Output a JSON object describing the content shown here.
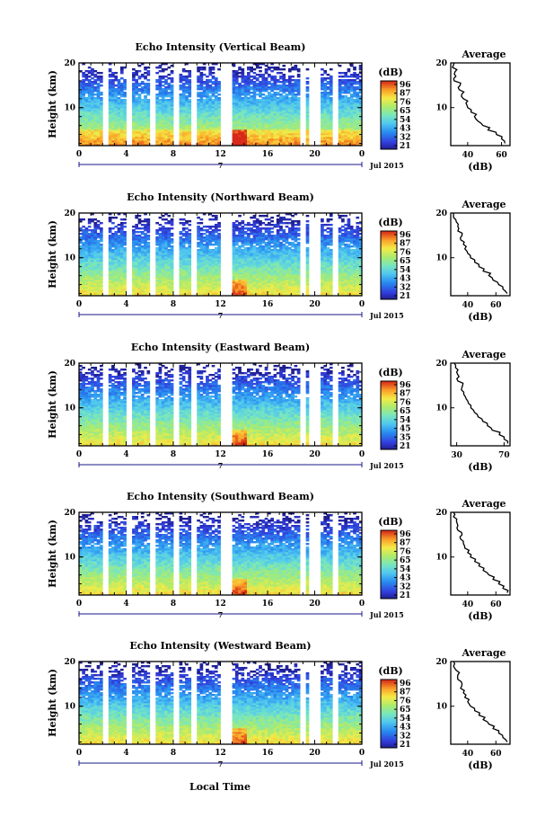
{
  "figure": {
    "bottom_xlabel": "Local Time"
  },
  "chart_data": [
    {
      "type": "heatmap",
      "title": "Echo Intensity (Vertical Beam)",
      "ylabel": "Height (km)",
      "xlim": [
        0,
        24
      ],
      "ylim": [
        1.5,
        20
      ],
      "x_ticks": [
        "0",
        "4",
        "8",
        "12",
        "16",
        "20",
        "0"
      ],
      "y_ticks": [
        "20",
        "10"
      ],
      "date_label": "Jul 2015",
      "date_marker": "7",
      "colorbar": {
        "label": "(dB)",
        "ticks": [
          "96",
          "87",
          "76",
          "65",
          "54",
          "43",
          "32",
          "21"
        ]
      },
      "gaps_hours": [
        [
          1.9,
          2.4
        ],
        [
          4.1,
          4.6
        ],
        [
          6.1,
          6.6
        ],
        [
          8.1,
          8.6
        ],
        [
          9.6,
          10.1
        ],
        [
          12.0,
          13.0
        ],
        [
          18.8,
          19.3
        ],
        [
          19.6,
          20.4
        ],
        [
          21.5,
          21.9
        ]
      ],
      "profile": {
        "title": "Average",
        "xlabel": "(dB)",
        "x_ticks": [
          "40",
          "60"
        ],
        "xlim": [
          30,
          65
        ],
        "y_ticks": [
          "20",
          "10"
        ],
        "ylim": [
          1.5,
          20
        ],
        "heights_km": [
          2,
          3,
          4,
          5,
          6,
          7,
          8,
          9,
          10,
          11,
          12,
          13,
          14,
          15,
          16,
          17,
          18,
          19,
          20
        ],
        "values_db": [
          62,
          60,
          57,
          52,
          49,
          46,
          44,
          42,
          40,
          39,
          37.5,
          36.5,
          35,
          35.5,
          32,
          33,
          32.5,
          31,
          32
        ]
      }
    },
    {
      "type": "heatmap",
      "title": "Echo Intensity (Northward Beam)",
      "ylabel": "Height (km)",
      "xlim": [
        0,
        24
      ],
      "ylim": [
        1.5,
        20
      ],
      "x_ticks": [
        "0",
        "4",
        "8",
        "12",
        "16",
        "20",
        "0"
      ],
      "y_ticks": [
        "20",
        "10"
      ],
      "date_label": "Jul 2015",
      "date_marker": "7",
      "colorbar": {
        "label": "(dB)",
        "ticks": [
          "96",
          "87",
          "76",
          "65",
          "54",
          "43",
          "32",
          "21"
        ]
      },
      "gaps_hours": [
        [
          1.9,
          2.4
        ],
        [
          4.1,
          4.6
        ],
        [
          6.1,
          6.6
        ],
        [
          8.1,
          8.6
        ],
        [
          9.6,
          10.1
        ],
        [
          12.0,
          13.0
        ],
        [
          18.8,
          19.3
        ],
        [
          19.6,
          20.4
        ],
        [
          21.5,
          21.9
        ]
      ],
      "profile": {
        "title": "Average",
        "xlabel": "(dB)",
        "x_ticks": [
          "40",
          "60"
        ],
        "xlim": [
          28,
          70
        ],
        "y_ticks": [
          "20",
          "10"
        ],
        "ylim": [
          1.5,
          20
        ],
        "heights_km": [
          2,
          3,
          4,
          5,
          6,
          7,
          8,
          9,
          10,
          11,
          12,
          13,
          14,
          15,
          16,
          17,
          18,
          19,
          20
        ],
        "values_db": [
          68,
          65,
          62,
          58,
          55,
          51,
          48,
          45,
          42,
          40,
          38,
          37,
          35,
          36,
          33,
          33,
          32,
          30,
          30
        ]
      }
    },
    {
      "type": "heatmap",
      "title": "Echo Intensity (Eastward Beam)",
      "ylabel": "Height (km)",
      "xlim": [
        0,
        24
      ],
      "ylim": [
        1.5,
        20
      ],
      "x_ticks": [
        "0",
        "4",
        "8",
        "12",
        "16",
        "20",
        "0"
      ],
      "y_ticks": [
        "20",
        "10"
      ],
      "date_label": "Jul 2015",
      "date_marker": "7",
      "colorbar": {
        "label": "(dB)",
        "ticks": [
          "96",
          "87",
          "76",
          "65",
          "54",
          "45",
          "35",
          "21"
        ]
      },
      "gaps_hours": [
        [
          1.9,
          2.4
        ],
        [
          4.1,
          4.6
        ],
        [
          6.1,
          6.6
        ],
        [
          8.1,
          8.6
        ],
        [
          9.6,
          10.1
        ],
        [
          12.0,
          13.0
        ],
        [
          18.8,
          19.3
        ],
        [
          19.6,
          20.4
        ],
        [
          21.5,
          21.9
        ]
      ],
      "profile": {
        "title": "Average",
        "xlabel": "(dB)",
        "x_ticks": [
          "30",
          "70"
        ],
        "xlim": [
          25,
          75
        ],
        "y_ticks": [
          "20",
          "10"
        ],
        "ylim": [
          1.5,
          20
        ],
        "heights_km": [
          2,
          3,
          4,
          5,
          6,
          7,
          8,
          9,
          10,
          11,
          12,
          13,
          14,
          15,
          16,
          17,
          18,
          19,
          20
        ],
        "values_db": [
          73,
          70,
          66,
          60,
          56,
          52,
          48,
          45,
          42,
          40,
          38,
          36,
          34,
          35,
          31,
          32,
          30,
          29,
          28
        ]
      }
    },
    {
      "type": "heatmap",
      "title": "Echo Intensity (Southward Beam)",
      "ylabel": "Height (km)",
      "xlim": [
        0,
        24
      ],
      "ylim": [
        1.5,
        20
      ],
      "x_ticks": [
        "0",
        "4",
        "8",
        "12",
        "16",
        "20",
        "0"
      ],
      "y_ticks": [
        "20",
        "10"
      ],
      "date_label": "Jul 2015",
      "date_marker": "7",
      "colorbar": {
        "label": "(dB)",
        "ticks": [
          "96",
          "87",
          "76",
          "65",
          "54",
          "43",
          "32",
          "21"
        ]
      },
      "gaps_hours": [
        [
          1.9,
          2.4
        ],
        [
          4.1,
          4.6
        ],
        [
          6.1,
          6.6
        ],
        [
          8.1,
          8.6
        ],
        [
          9.6,
          10.1
        ],
        [
          12.0,
          13.0
        ],
        [
          18.8,
          19.3
        ],
        [
          19.6,
          20.4
        ],
        [
          21.5,
          21.9
        ]
      ],
      "profile": {
        "title": "Average",
        "xlabel": "(dB)",
        "x_ticks": [
          "40",
          "60"
        ],
        "xlim": [
          28,
          70
        ],
        "y_ticks": [
          "20",
          "10"
        ],
        "ylim": [
          1.5,
          20
        ],
        "heights_km": [
          2,
          3,
          4,
          5,
          6,
          7,
          8,
          9,
          10,
          11,
          12,
          13,
          14,
          15,
          16,
          17,
          18,
          19,
          20
        ],
        "values_db": [
          68,
          65,
          62,
          58,
          55,
          51,
          48,
          45,
          42,
          40,
          38,
          37,
          35,
          36,
          33,
          33,
          32,
          30,
          30
        ]
      }
    },
    {
      "type": "heatmap",
      "title": "Echo Intensity (Westward Beam)",
      "ylabel": "Height (km)",
      "xlim": [
        0,
        24
      ],
      "ylim": [
        1.5,
        20
      ],
      "x_ticks": [
        "0",
        "4",
        "8",
        "12",
        "16",
        "20",
        "0"
      ],
      "y_ticks": [
        "20",
        "10"
      ],
      "date_label": "Jul 2015",
      "date_marker": "7",
      "colorbar": {
        "label": "(dB)",
        "ticks": [
          "96",
          "87",
          "76",
          "65",
          "54",
          "43",
          "32",
          "21"
        ]
      },
      "gaps_hours": [
        [
          1.9,
          2.4
        ],
        [
          4.1,
          4.6
        ],
        [
          6.1,
          6.6
        ],
        [
          8.1,
          8.6
        ],
        [
          9.6,
          10.1
        ],
        [
          12.0,
          13.0
        ],
        [
          18.8,
          19.3
        ],
        [
          19.6,
          20.4
        ],
        [
          21.5,
          21.9
        ]
      ],
      "profile": {
        "title": "Average",
        "xlabel": "(dB)",
        "x_ticks": [
          "40",
          "60"
        ],
        "xlim": [
          28,
          70
        ],
        "y_ticks": [
          "20",
          "10"
        ],
        "ylim": [
          1.5,
          20
        ],
        "heights_km": [
          2,
          3,
          4,
          5,
          6,
          7,
          8,
          9,
          10,
          11,
          12,
          13,
          14,
          15,
          16,
          17,
          18,
          19,
          20
        ],
        "values_db": [
          68,
          65,
          62,
          58,
          55,
          51,
          48,
          45,
          42,
          40,
          38,
          37,
          35,
          36,
          33,
          33,
          32,
          30,
          30
        ]
      }
    }
  ]
}
